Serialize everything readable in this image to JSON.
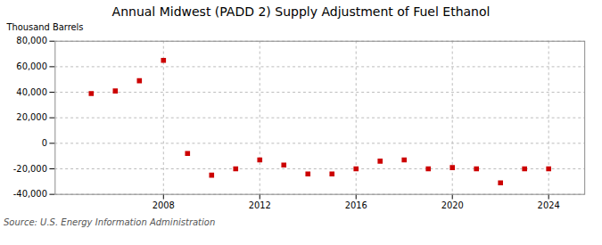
{
  "chart_data": {
    "type": "scatter",
    "title": "Annual Midwest (PADD 2) Supply Adjustment of Fuel Ethanol",
    "ylabel": "Thousand Barrels",
    "source": "Source: U.S. Energy Information Administration",
    "x": [
      2005,
      2006,
      2007,
      2008,
      2009,
      2010,
      2011,
      2012,
      2013,
      2014,
      2015,
      2016,
      2017,
      2018,
      2019,
      2020,
      2021,
      2022,
      2023,
      2024
    ],
    "values": [
      39000,
      41000,
      49000,
      65000,
      -8000,
      -25000,
      -20000,
      -13000,
      -17000,
      -24000,
      -24000,
      -20000,
      -14000,
      -13000,
      -20000,
      -19000,
      -20000,
      -31000,
      -20000,
      -20000
    ],
    "color": "#cc0000",
    "marker": "square",
    "xlim": [
      2003.5,
      2025.5
    ],
    "xticks": [
      2008,
      2012,
      2016,
      2020,
      2024
    ],
    "ylim": [
      -40000,
      80000
    ],
    "yticks": [
      {
        "value": -40000,
        "label": "-40,000"
      },
      {
        "value": -20000,
        "label": "-20,000"
      },
      0,
      {
        "value": 20000,
        "label": "20,000"
      },
      {
        "value": 40000,
        "label": "40,000"
      },
      {
        "value": 60000,
        "label": "60,000"
      },
      {
        "value": 80000,
        "label": "80,000"
      }
    ],
    "grid": true
  }
}
